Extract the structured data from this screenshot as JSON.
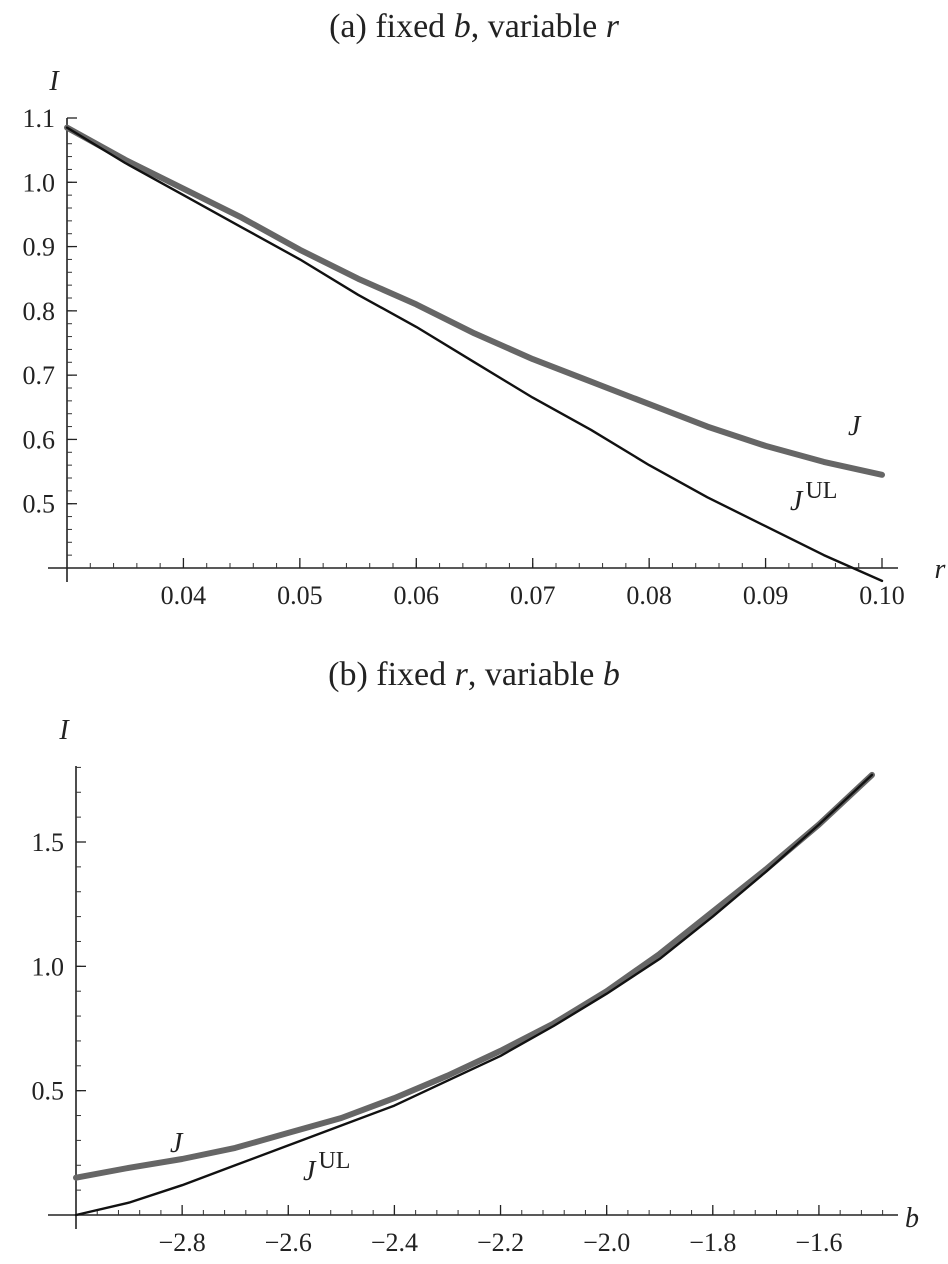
{
  "chart_data": [
    {
      "type": "line",
      "title_prefix": "(a) fixed ",
      "title_var1": "b",
      "title_mid": ", variable ",
      "title_var2": "r",
      "xlabel": "r",
      "ylabel": "I",
      "xlim": [
        0.03,
        0.1
      ],
      "ylim": [
        0.4,
        1.1
      ],
      "xticks": [
        0.04,
        0.05,
        0.06,
        0.07,
        0.08,
        0.09,
        0.1
      ],
      "xtick_labels": [
        "0.04",
        "0.05",
        "0.06",
        "0.07",
        "0.08",
        "0.09",
        "0.10"
      ],
      "yticks": [
        0.5,
        0.6,
        0.7,
        0.8,
        0.9,
        1.0,
        1.1
      ],
      "ytick_labels": [
        "0.5",
        "0.6",
        "0.7",
        "0.8",
        "0.9",
        "1.0",
        "1.1"
      ],
      "series": [
        {
          "name": "J",
          "label_main": "J",
          "label_sup": "",
          "color": "#666666",
          "x": [
            0.03,
            0.035,
            0.04,
            0.045,
            0.05,
            0.055,
            0.06,
            0.065,
            0.07,
            0.075,
            0.08,
            0.085,
            0.09,
            0.095,
            0.1
          ],
          "y": [
            1.085,
            1.035,
            0.99,
            0.945,
            0.895,
            0.85,
            0.81,
            0.765,
            0.725,
            0.69,
            0.655,
            0.62,
            0.59,
            0.565,
            0.545
          ]
        },
        {
          "name": "J^UL",
          "label_main": "J",
          "label_sup": "UL",
          "color": "#111111",
          "x": [
            0.03,
            0.035,
            0.04,
            0.045,
            0.05,
            0.055,
            0.06,
            0.065,
            0.07,
            0.075,
            0.08,
            0.085,
            0.09,
            0.095,
            0.1
          ],
          "y": [
            1.085,
            1.03,
            0.98,
            0.93,
            0.88,
            0.825,
            0.775,
            0.72,
            0.665,
            0.615,
            0.56,
            0.51,
            0.465,
            0.42,
            0.38
          ]
        }
      ]
    },
    {
      "type": "line",
      "title_prefix": "(b) fixed ",
      "title_var1": "r",
      "title_mid": ", variable ",
      "title_var2": "b",
      "xlabel": "b",
      "ylabel": "I",
      "xlim": [
        -3.0,
        -1.5
      ],
      "ylim": [
        0.0,
        1.8
      ],
      "xticks": [
        -2.8,
        -2.6,
        -2.4,
        -2.2,
        -2.0,
        -1.8,
        -1.6
      ],
      "xtick_labels": [
        "−2.8",
        "−2.6",
        "−2.4",
        "−2.2",
        "−2.0",
        "−1.8",
        "−1.6"
      ],
      "yticks": [
        0.5,
        1.0,
        1.5
      ],
      "ytick_labels": [
        "0.5",
        "1.0",
        "1.5"
      ],
      "series": [
        {
          "name": "J",
          "label_main": "J",
          "label_sup": "",
          "color": "#666666",
          "x": [
            -3.0,
            -2.9,
            -2.8,
            -2.7,
            -2.6,
            -2.5,
            -2.4,
            -2.3,
            -2.2,
            -2.1,
            -2.0,
            -1.9,
            -1.8,
            -1.7,
            -1.6,
            -1.5
          ],
          "y": [
            0.15,
            0.19,
            0.225,
            0.27,
            0.33,
            0.39,
            0.47,
            0.56,
            0.66,
            0.77,
            0.9,
            1.05,
            1.22,
            1.39,
            1.57,
            1.77
          ]
        },
        {
          "name": "J^UL",
          "label_main": "J",
          "label_sup": "UL",
          "color": "#111111",
          "x": [
            -3.0,
            -2.9,
            -2.8,
            -2.7,
            -2.6,
            -2.5,
            -2.4,
            -2.3,
            -2.2,
            -2.1,
            -2.0,
            -1.9,
            -1.8,
            -1.7,
            -1.6,
            -1.5
          ],
          "y": [
            0.0,
            0.05,
            0.12,
            0.2,
            0.28,
            0.36,
            0.44,
            0.54,
            0.64,
            0.76,
            0.89,
            1.03,
            1.2,
            1.38,
            1.57,
            1.77
          ]
        }
      ]
    }
  ]
}
